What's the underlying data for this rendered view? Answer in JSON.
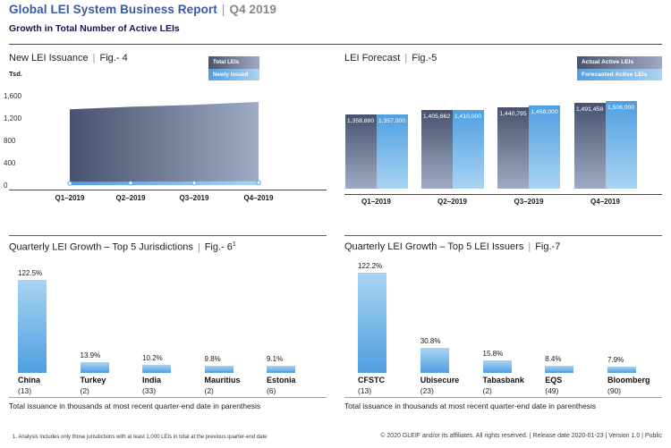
{
  "ui": {
    "pipe": "|"
  },
  "header": {
    "title": "Global LEI System Business Report",
    "period": "Q4 2019",
    "subtitle": "Growth in Total Number of Active LEIs"
  },
  "colors": {
    "title_blue": "#3a5aa0",
    "subtitle_navy": "#15154d",
    "slate_dark": "#47536e",
    "slate_light": "#9fabc4",
    "blue_dark": "#4f9fe2",
    "blue_light": "#a9d4f2"
  },
  "chart_data": [
    {
      "id": "fig4",
      "type": "area",
      "title": "New LEI Issuance",
      "figure": "Fig.- 4",
      "unit_label": "Tsd.",
      "legend": [
        "Total LEIs",
        "Newly Issued LEIs"
      ],
      "x": [
        "Q1–2019",
        "Q2–2019",
        "Q3–2019",
        "Q4–2019"
      ],
      "series": [
        {
          "name": "Total LEIs",
          "values": [
            1358.9,
            1405.7,
            1440.8,
            1491.5
          ]
        },
        {
          "name": "Newly Issued LEIs",
          "values": [
            60,
            62,
            64,
            70
          ]
        }
      ],
      "ylim": [
        0,
        1600
      ],
      "y_ticks": [
        "1,600",
        "1,200",
        "800",
        "400",
        "0"
      ],
      "legend_position": "top-right",
      "grid": false
    },
    {
      "id": "fig5",
      "type": "bar",
      "title": "LEI Forecast",
      "figure": "Fig.-5",
      "legend": [
        "Actual Active LEIs",
        "Forecasted Active LEIs"
      ],
      "x": [
        "Q1–2019",
        "Q2–2019",
        "Q3–2019",
        "Q4–2019"
      ],
      "series": [
        {
          "name": "Actual Active LEIs",
          "values": [
            1358880,
            1405662,
            1440795,
            1491458
          ],
          "labels": [
            "1,358,880",
            "1,405,662",
            "1,440,795",
            "1,491,458"
          ]
        },
        {
          "name": "Forecasted Active LEIs",
          "values": [
            1357000,
            1410000,
            1458000,
            1506000
          ],
          "labels": [
            "1,357,000",
            "1,410,000",
            "1,458,000",
            "1,506,000"
          ]
        }
      ],
      "legend_position": "top-right",
      "grid": false
    },
    {
      "id": "fig6",
      "type": "bar",
      "title": "Quarterly LEI Growth – Top 5 Jurisdictions",
      "figure": "Fig.- 6",
      "figure_superscript": "1",
      "categories": [
        "China",
        "Turkey",
        "India",
        "Mauritius",
        "Estonia"
      ],
      "counts": [
        "(13)",
        "(2)",
        "(33)",
        "(2)",
        "(6)"
      ],
      "values": [
        122.5,
        13.9,
        10.2,
        9.8,
        9.1
      ],
      "labels": [
        "122.5%",
        "13.9%",
        "10.2%",
        "9.8%",
        "9.1%"
      ],
      "note": "Total issuance in thousands at most recent quarter-end date in parenthesis",
      "grid": false
    },
    {
      "id": "fig7",
      "type": "bar",
      "title": "Quarterly LEI Growth – Top 5 LEI Issuers",
      "figure": "Fig.-7",
      "categories": [
        "CFSTC",
        "Ubisecure",
        "Tabasbank",
        "EQS",
        "Bloomberg"
      ],
      "counts": [
        "(13)",
        "(23)",
        "(2)",
        "(49)",
        "(90)"
      ],
      "values": [
        122.2,
        30.8,
        15.8,
        8.4,
        7.9
      ],
      "labels": [
        "122.2%",
        "30.8%",
        "15.8%",
        "8.4%",
        "7.9%"
      ],
      "note": "Total issuance in thousands at most recent quarter-end date in parenthesis",
      "grid": false
    }
  ],
  "footnote": "1. Analysis includes only those jurisdictions with at least 1,000 LEIs in total at the previous quarter-end date",
  "footer": "© 2020 GLEIF and/or its affiliates. All rights reserved.  |  Release date 2020-01-23  |  Version 1.0  |  Public"
}
